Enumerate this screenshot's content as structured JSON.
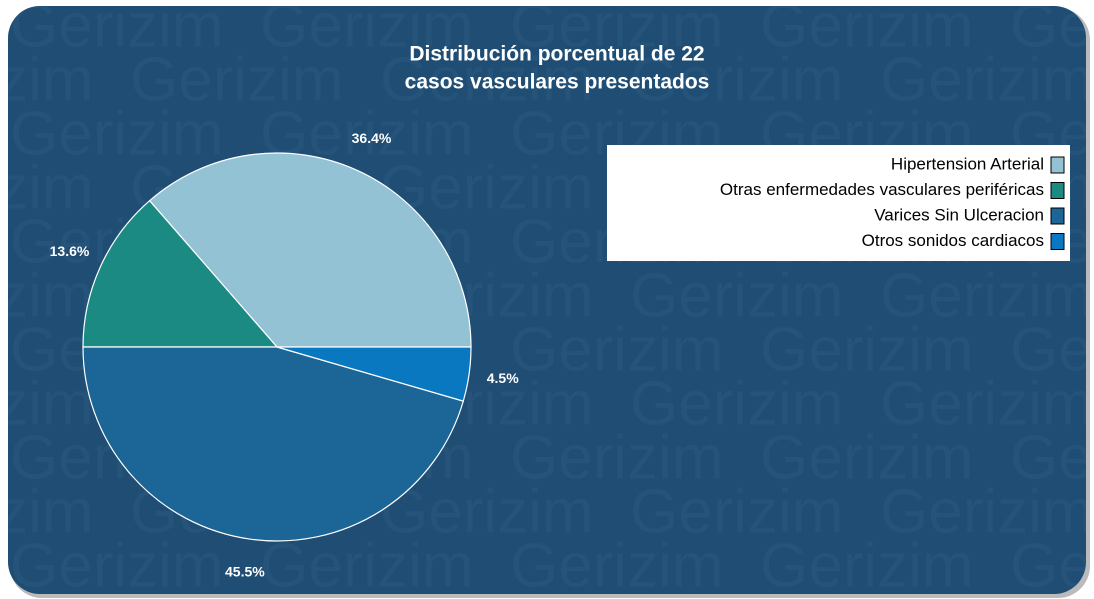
{
  "chart_data": {
    "type": "pie",
    "title": [
      "Distribución porcentual de 22",
      "casos vasculares presentados"
    ],
    "watermark": "Gerizim",
    "categories": [
      "Hipertension Arterial",
      "Otras enfermedades vasculares periféricas",
      "Varices Sin Ulceracion",
      "Otros sonidos cardiacos"
    ],
    "values": [
      36.4,
      13.6,
      45.5,
      4.5
    ],
    "value_labels": [
      "36.4%",
      "13.6%",
      "45.5%",
      "4.5%"
    ],
    "colors": [
      "#93c2d5",
      "#1b8a83",
      "#1c6597",
      "#0a78c1"
    ],
    "legend": "top-right"
  }
}
